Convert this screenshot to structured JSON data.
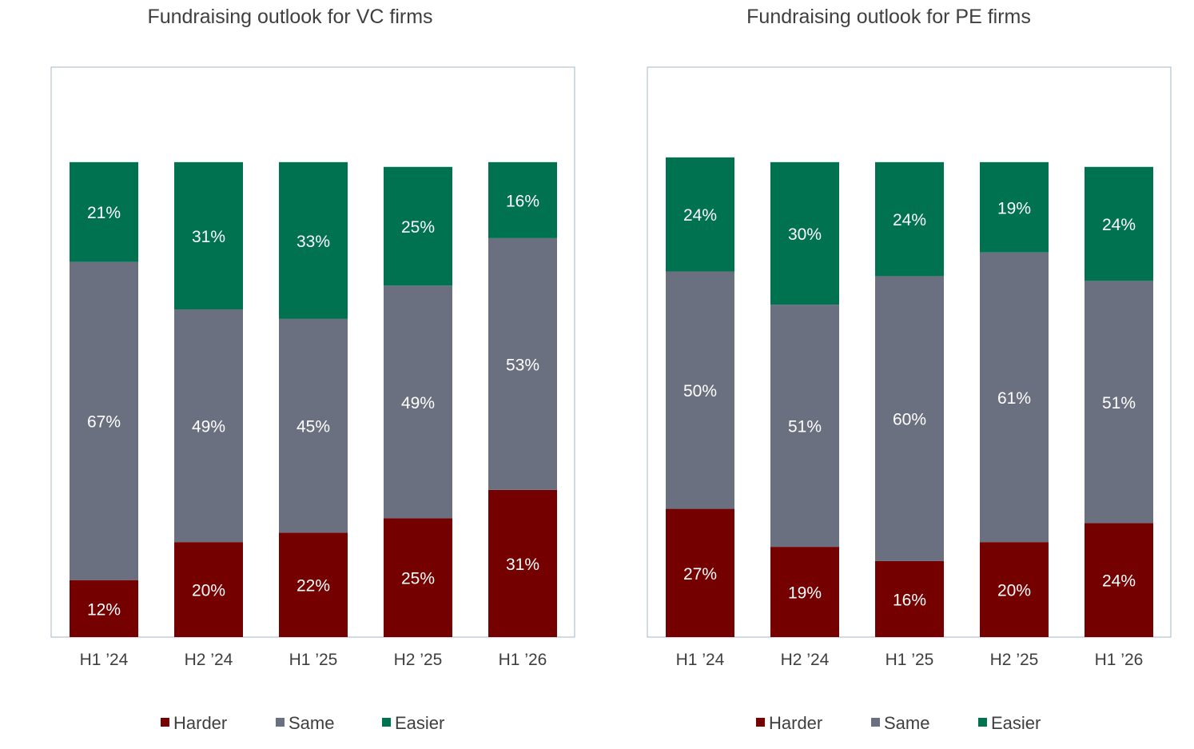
{
  "chart_data": [
    {
      "type": "bar",
      "stacked": true,
      "title": "Fundraising outlook for VC firms",
      "categories": [
        "H1 ’24",
        "H2 ’24",
        "H1 ’25",
        "H2 ’25",
        "H1 ’26"
      ],
      "series": [
        {
          "name": "Harder",
          "color": "#750000",
          "values": [
            12,
            20,
            22,
            25,
            31
          ]
        },
        {
          "name": "Same",
          "color": "#6b7080",
          "values": [
            67,
            49,
            45,
            49,
            53
          ]
        },
        {
          "name": "Easier",
          "color": "#00724f",
          "values": [
            21,
            31,
            33,
            25,
            16
          ]
        }
      ],
      "value_format": "{v}%",
      "ylim": [
        0,
        120
      ],
      "grid": false,
      "legend": "bottom"
    },
    {
      "type": "bar",
      "stacked": true,
      "title": "Fundraising outlook for PE firms",
      "categories": [
        "H1 ’24",
        "H2 ’24",
        "H1 ’25",
        "H2 ’25",
        "H1 ’26"
      ],
      "series": [
        {
          "name": "Harder",
          "color": "#750000",
          "values": [
            27,
            19,
            16,
            20,
            24
          ]
        },
        {
          "name": "Same",
          "color": "#6b7080",
          "values": [
            50,
            51,
            60,
            61,
            51
          ]
        },
        {
          "name": "Easier",
          "color": "#00724f",
          "values": [
            24,
            30,
            24,
            19,
            24
          ]
        }
      ],
      "value_format": "{v}%",
      "ylim": [
        0,
        120
      ],
      "grid": false,
      "legend": "bottom"
    }
  ]
}
